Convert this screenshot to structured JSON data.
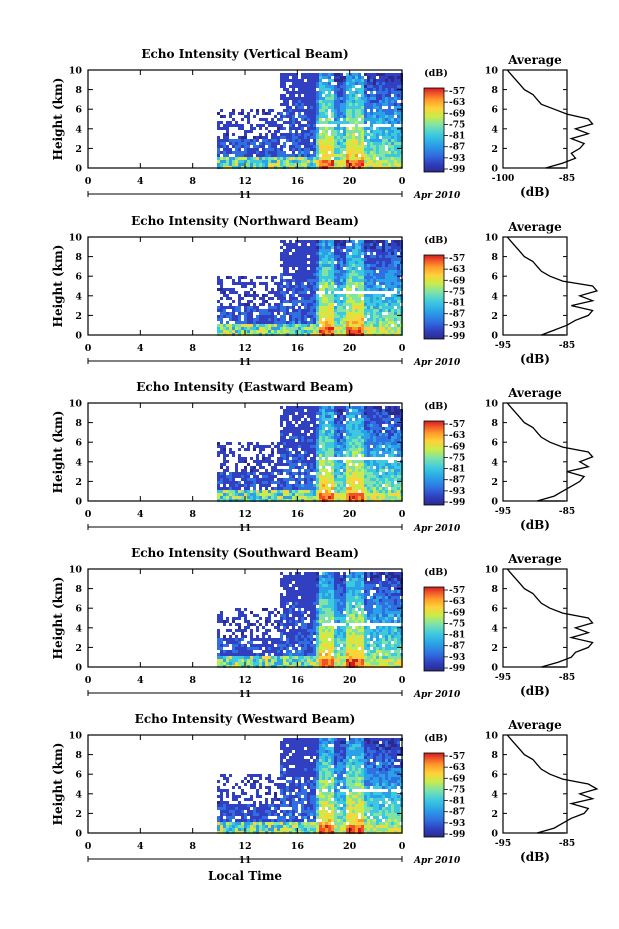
{
  "chart_data": {
    "type": "heatmap",
    "panels": [
      {
        "title": "Echo Intensity (Vertical Beam)",
        "profile": [
          -90,
          -86,
          -83,
          -84,
          -82,
          -81,
          -84,
          -80,
          -83,
          -79,
          -80,
          -85,
          -88,
          -91,
          -92,
          -93,
          -95,
          -96,
          -97,
          -98,
          -99
        ]
      },
      {
        "title": "Echo Intensity (Northward Beam)",
        "profile": [
          -91,
          -88,
          -85,
          -83,
          -80,
          -79,
          -84,
          -79,
          -82,
          -78,
          -79,
          -86,
          -89,
          -91,
          -92,
          -93,
          -95,
          -96,
          -97,
          -98,
          -99
        ]
      },
      {
        "title": "Echo Intensity (Eastward Beam)",
        "profile": [
          -92,
          -88,
          -86,
          -84,
          -82,
          -81,
          -85,
          -80,
          -82,
          -79,
          -80,
          -86,
          -89,
          -91,
          -92,
          -93,
          -95,
          -96,
          -97,
          -98,
          -99
        ]
      },
      {
        "title": "Echo Intensity (Southward Beam)",
        "profile": [
          -91,
          -87,
          -84,
          -83,
          -80,
          -79,
          -84,
          -80,
          -83,
          -79,
          -80,
          -86,
          -89,
          -91,
          -92,
          -93,
          -95,
          -96,
          -97,
          -98,
          -99
        ]
      },
      {
        "title": "Echo Intensity (Westward Beam)",
        "profile": [
          -92,
          -88,
          -86,
          -84,
          -81,
          -80,
          -84,
          -79,
          -82,
          -78,
          -80,
          -86,
          -89,
          -91,
          -92,
          -93,
          -95,
          -96,
          -97,
          -98,
          -99
        ]
      }
    ],
    "x_ticks": [
      "0",
      "4",
      "8",
      "12",
      "16",
      "20",
      "0"
    ],
    "x_range": [
      0,
      24
    ],
    "date_day": "11",
    "date_month_year": "Apr 2010",
    "xlabel": "Local Time",
    "ylabel": "Height (km)",
    "y_ticks": [
      "0",
      "2",
      "4",
      "6",
      "8",
      "10"
    ],
    "ylim": [
      0,
      10
    ],
    "colorbar": {
      "unit": "(dB)",
      "ticks": [
        "-57",
        "-63",
        "-69",
        "-75",
        "-81",
        "-87",
        "-93",
        "-99"
      ],
      "range": [
        -99,
        -57
      ],
      "colors": [
        "#2a2a8c",
        "#3040c0",
        "#2f6fe0",
        "#2aa0e8",
        "#3cc9df",
        "#7fe3a8",
        "#c8ec4a",
        "#ffd23a",
        "#ff9a2a",
        "#f0502a",
        "#d01e1e"
      ]
    },
    "profile_panel": {
      "title": "Average",
      "xlabel": "(dB)",
      "x_ticks_first": [
        "-100",
        "-85"
      ],
      "x_ticks_rest": [
        "-95",
        "-85"
      ],
      "y_ticks": [
        "0",
        "2",
        "4",
        "6",
        "8",
        "10"
      ],
      "ylim": [
        0,
        10
      ],
      "xlim": [
        -100,
        -85
      ]
    }
  }
}
